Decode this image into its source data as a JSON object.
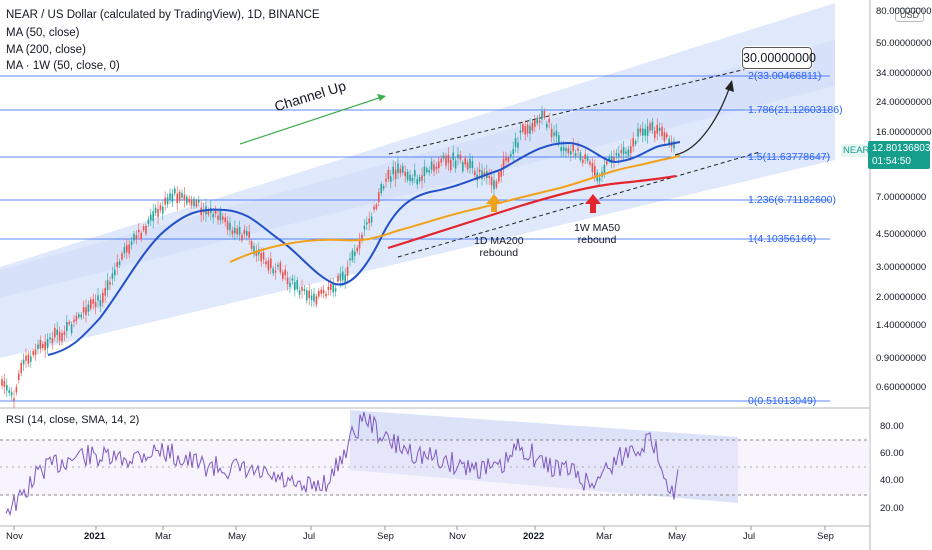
{
  "legend": {
    "symbol_line": "NEAR / US Dollar (calculated by TradingView), 1D, BINANCE",
    "ma50": "MA (50, close)",
    "ma200": "MA (200, close)",
    "ma1w": "MA · 1W (50, close, 0)"
  },
  "currency_button": "USD",
  "price_tag": {
    "symbol": "NEARUSD",
    "price": "12.80136803",
    "countdown": "01:54:50"
  },
  "annotations": {
    "channel": "Channel Up",
    "target": "30.00000000",
    "ma200_rebound_line1": "1D MA200",
    "ma200_rebound_line2": "rebound",
    "ma50_rebound_line1": "1W MA50",
    "ma50_rebound_line2": "rebound"
  },
  "fib_levels": [
    {
      "label": "2(33.00466811)"
    },
    {
      "label": "1.786(21.12603186)"
    },
    {
      "label": "1.5(11.63778647)"
    },
    {
      "label": "1.236(6.71182600)"
    },
    {
      "label": "1(4.10356166)"
    },
    {
      "label": "0(0.51013049)"
    }
  ],
  "price_axis": [
    "80.00000000",
    "50.00000000",
    "34.00000000",
    "24.00000000",
    "16.00000000",
    "7.00000000",
    "4.50000000",
    "3.00000000",
    "2.00000000",
    "1.40000000",
    "0.90000000",
    "0.60000000"
  ],
  "rsi": {
    "title": "RSI (14, close, SMA, 14, 2)",
    "axis": [
      "80.00",
      "60.00",
      "40.00",
      "20.00"
    ]
  },
  "time_axis": [
    {
      "label": "Nov",
      "bold": false
    },
    {
      "label": "2021",
      "bold": true
    },
    {
      "label": "Mar",
      "bold": false
    },
    {
      "label": "May",
      "bold": false
    },
    {
      "label": "Jul",
      "bold": false
    },
    {
      "label": "Sep",
      "bold": false
    },
    {
      "label": "Nov",
      "bold": false
    },
    {
      "label": "2022",
      "bold": true
    },
    {
      "label": "Mar",
      "bold": false
    },
    {
      "label": "May",
      "bold": false
    },
    {
      "label": "Jul",
      "bold": false
    },
    {
      "label": "Sep",
      "bold": false
    }
  ],
  "colors": {
    "channel_fill": "#dbe5fb",
    "ma50": "#2352c8",
    "ma200": "#f2a21a",
    "ma1w": "#e3262e",
    "up_candle": "#26a69a",
    "down_candle": "#ef5350",
    "fib_line": "#2962ff",
    "rsi_line": "#7e57c2",
    "price_tag": "#159e8c"
  }
}
